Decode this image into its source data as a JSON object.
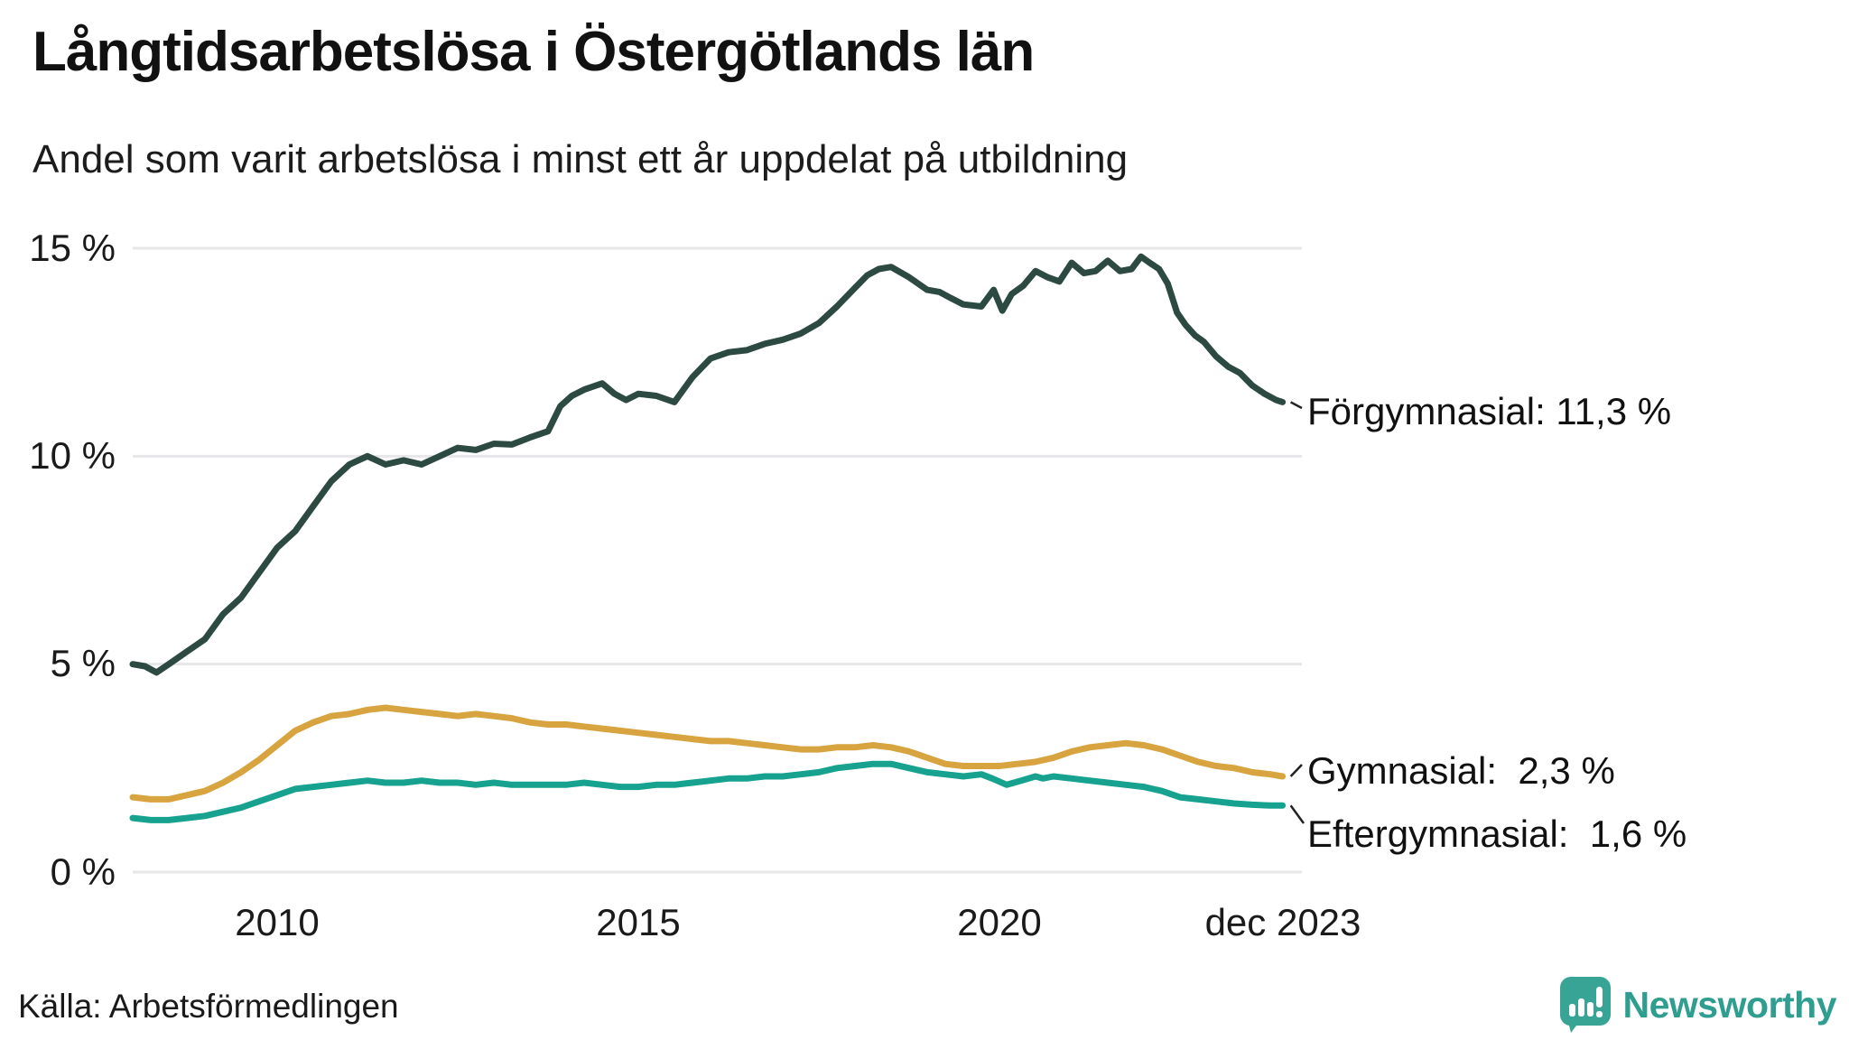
{
  "header": {
    "title": "Långtidsarbetslösa i Östergötlands län",
    "subtitle": "Andel som varit arbetslösa i minst ett år uppdelat på utbildning"
  },
  "footer": {
    "source": "Källa: Arbetsförmedlingen",
    "brand": "Newsworthy"
  },
  "colors": {
    "grid": "#e7e7ea",
    "text": "#1a1a1a",
    "connector": "#222222",
    "brand_teal": "#2f9e90",
    "icon_teal": "#38a495"
  },
  "chart_data": {
    "type": "line",
    "title": "Långtidsarbetslösa i Östergötlands län",
    "subtitle": "Andel som varit arbetslösa i minst ett år uppdelat på utbildning",
    "unit": "%",
    "grid": "horizontal",
    "legend_position": "end-of-line labels, right",
    "x_axis": {
      "min": 2008.0,
      "max": 2023.92,
      "ticks": [
        {
          "year": 2010,
          "label": "2010"
        },
        {
          "year": 2015,
          "label": "2015"
        },
        {
          "year": 2020,
          "label": "2020"
        },
        {
          "year": 2023.92,
          "label": "dec 2023"
        }
      ]
    },
    "y_axis": {
      "min": 0,
      "max": 15,
      "ticks": [
        {
          "value": 15,
          "label": "15 %"
        },
        {
          "value": 10,
          "label": "10 %"
        },
        {
          "value": 5,
          "label": "5 %"
        },
        {
          "value": 0,
          "label": "0 %"
        }
      ]
    },
    "series": [
      {
        "id": "forgymnasial",
        "name": "Förgymnasial",
        "end_label": "Förgymnasial: 11,3 %",
        "final_value": "11,3 %",
        "color": "#2c4a42",
        "points": [
          [
            2008.0,
            5.0
          ],
          [
            2008.17,
            4.95
          ],
          [
            2008.33,
            4.8
          ],
          [
            2008.5,
            5.0
          ],
          [
            2008.75,
            5.3
          ],
          [
            2009.0,
            5.6
          ],
          [
            2009.25,
            6.2
          ],
          [
            2009.5,
            6.6
          ],
          [
            2009.75,
            7.2
          ],
          [
            2010.0,
            7.8
          ],
          [
            2010.25,
            8.2
          ],
          [
            2010.5,
            8.8
          ],
          [
            2010.75,
            9.4
          ],
          [
            2011.0,
            9.8
          ],
          [
            2011.25,
            10.0
          ],
          [
            2011.5,
            9.8
          ],
          [
            2011.75,
            9.9
          ],
          [
            2012.0,
            9.8
          ],
          [
            2012.25,
            10.0
          ],
          [
            2012.5,
            10.2
          ],
          [
            2012.75,
            10.15
          ],
          [
            2013.0,
            10.3
          ],
          [
            2013.25,
            10.28
          ],
          [
            2013.5,
            10.45
          ],
          [
            2013.75,
            10.6
          ],
          [
            2013.92,
            11.2
          ],
          [
            2014.08,
            11.45
          ],
          [
            2014.25,
            11.6
          ],
          [
            2014.5,
            11.75
          ],
          [
            2014.67,
            11.5
          ],
          [
            2014.83,
            11.35
          ],
          [
            2015.0,
            11.5
          ],
          [
            2015.25,
            11.45
          ],
          [
            2015.5,
            11.3
          ],
          [
            2015.75,
            11.9
          ],
          [
            2016.0,
            12.35
          ],
          [
            2016.25,
            12.5
          ],
          [
            2016.5,
            12.55
          ],
          [
            2016.75,
            12.7
          ],
          [
            2017.0,
            12.8
          ],
          [
            2017.25,
            12.95
          ],
          [
            2017.5,
            13.2
          ],
          [
            2017.75,
            13.6
          ],
          [
            2018.0,
            14.05
          ],
          [
            2018.17,
            14.35
          ],
          [
            2018.33,
            14.5
          ],
          [
            2018.5,
            14.55
          ],
          [
            2018.75,
            14.3
          ],
          [
            2019.0,
            14.0
          ],
          [
            2019.17,
            13.95
          ],
          [
            2019.33,
            13.8
          ],
          [
            2019.5,
            13.65
          ],
          [
            2019.75,
            13.6
          ],
          [
            2019.92,
            14.0
          ],
          [
            2020.04,
            13.5
          ],
          [
            2020.17,
            13.9
          ],
          [
            2020.33,
            14.1
          ],
          [
            2020.5,
            14.45
          ],
          [
            2020.67,
            14.3
          ],
          [
            2020.83,
            14.2
          ],
          [
            2021.0,
            14.65
          ],
          [
            2021.17,
            14.4
          ],
          [
            2021.33,
            14.45
          ],
          [
            2021.5,
            14.7
          ],
          [
            2021.67,
            14.45
          ],
          [
            2021.83,
            14.5
          ],
          [
            2021.96,
            14.8
          ],
          [
            2022.08,
            14.65
          ],
          [
            2022.21,
            14.5
          ],
          [
            2022.33,
            14.15
          ],
          [
            2022.46,
            13.45
          ],
          [
            2022.58,
            13.15
          ],
          [
            2022.71,
            12.9
          ],
          [
            2022.83,
            12.75
          ],
          [
            2023.0,
            12.4
          ],
          [
            2023.17,
            12.15
          ],
          [
            2023.33,
            12.0
          ],
          [
            2023.5,
            11.7
          ],
          [
            2023.67,
            11.5
          ],
          [
            2023.83,
            11.35
          ],
          [
            2023.92,
            11.3
          ]
        ]
      },
      {
        "id": "gymnasial",
        "name": "Gymnasial",
        "end_label": "Gymnasial:  2,3 %",
        "final_value": "2,3 %",
        "color": "#d8a440",
        "points": [
          [
            2008.0,
            1.8
          ],
          [
            2008.25,
            1.75
          ],
          [
            2008.5,
            1.75
          ],
          [
            2008.75,
            1.85
          ],
          [
            2009.0,
            1.95
          ],
          [
            2009.25,
            2.15
          ],
          [
            2009.5,
            2.4
          ],
          [
            2009.75,
            2.7
          ],
          [
            2010.0,
            3.05
          ],
          [
            2010.25,
            3.4
          ],
          [
            2010.5,
            3.6
          ],
          [
            2010.75,
            3.75
          ],
          [
            2011.0,
            3.8
          ],
          [
            2011.25,
            3.9
          ],
          [
            2011.5,
            3.95
          ],
          [
            2011.75,
            3.9
          ],
          [
            2012.0,
            3.85
          ],
          [
            2012.25,
            3.8
          ],
          [
            2012.5,
            3.75
          ],
          [
            2012.75,
            3.8
          ],
          [
            2013.0,
            3.75
          ],
          [
            2013.25,
            3.7
          ],
          [
            2013.5,
            3.6
          ],
          [
            2013.75,
            3.55
          ],
          [
            2014.0,
            3.55
          ],
          [
            2014.25,
            3.5
          ],
          [
            2014.5,
            3.45
          ],
          [
            2014.75,
            3.4
          ],
          [
            2015.0,
            3.35
          ],
          [
            2015.25,
            3.3
          ],
          [
            2015.5,
            3.25
          ],
          [
            2015.75,
            3.2
          ],
          [
            2016.0,
            3.15
          ],
          [
            2016.25,
            3.15
          ],
          [
            2016.5,
            3.1
          ],
          [
            2016.75,
            3.05
          ],
          [
            2017.0,
            3.0
          ],
          [
            2017.25,
            2.95
          ],
          [
            2017.5,
            2.95
          ],
          [
            2017.75,
            3.0
          ],
          [
            2018.0,
            3.0
          ],
          [
            2018.25,
            3.05
          ],
          [
            2018.5,
            3.0
          ],
          [
            2018.75,
            2.9
          ],
          [
            2019.0,
            2.75
          ],
          [
            2019.25,
            2.6
          ],
          [
            2019.5,
            2.55
          ],
          [
            2019.75,
            2.55
          ],
          [
            2020.0,
            2.55
          ],
          [
            2020.25,
            2.6
          ],
          [
            2020.5,
            2.65
          ],
          [
            2020.75,
            2.75
          ],
          [
            2021.0,
            2.9
          ],
          [
            2021.25,
            3.0
          ],
          [
            2021.5,
            3.05
          ],
          [
            2021.75,
            3.1
          ],
          [
            2022.0,
            3.05
          ],
          [
            2022.25,
            2.95
          ],
          [
            2022.5,
            2.8
          ],
          [
            2022.75,
            2.65
          ],
          [
            2023.0,
            2.55
          ],
          [
            2023.25,
            2.5
          ],
          [
            2023.5,
            2.4
          ],
          [
            2023.75,
            2.35
          ],
          [
            2023.92,
            2.3
          ]
        ]
      },
      {
        "id": "eftergymnasial",
        "name": "Eftergymnasial",
        "end_label": "Eftergymnasial:  1,6 %",
        "final_value": "1,6 %",
        "color": "#16a28f",
        "points": [
          [
            2008.0,
            1.3
          ],
          [
            2008.25,
            1.25
          ],
          [
            2008.5,
            1.25
          ],
          [
            2008.75,
            1.3
          ],
          [
            2009.0,
            1.35
          ],
          [
            2009.25,
            1.45
          ],
          [
            2009.5,
            1.55
          ],
          [
            2009.75,
            1.7
          ],
          [
            2010.0,
            1.85
          ],
          [
            2010.25,
            2.0
          ],
          [
            2010.5,
            2.05
          ],
          [
            2010.75,
            2.1
          ],
          [
            2011.0,
            2.15
          ],
          [
            2011.25,
            2.2
          ],
          [
            2011.5,
            2.15
          ],
          [
            2011.75,
            2.15
          ],
          [
            2012.0,
            2.2
          ],
          [
            2012.25,
            2.15
          ],
          [
            2012.5,
            2.15
          ],
          [
            2012.75,
            2.1
          ],
          [
            2013.0,
            2.15
          ],
          [
            2013.25,
            2.1
          ],
          [
            2013.5,
            2.1
          ],
          [
            2013.75,
            2.1
          ],
          [
            2014.0,
            2.1
          ],
          [
            2014.25,
            2.15
          ],
          [
            2014.5,
            2.1
          ],
          [
            2014.75,
            2.05
          ],
          [
            2015.0,
            2.05
          ],
          [
            2015.25,
            2.1
          ],
          [
            2015.5,
            2.1
          ],
          [
            2015.75,
            2.15
          ],
          [
            2016.0,
            2.2
          ],
          [
            2016.25,
            2.25
          ],
          [
            2016.5,
            2.25
          ],
          [
            2016.75,
            2.3
          ],
          [
            2017.0,
            2.3
          ],
          [
            2017.25,
            2.35
          ],
          [
            2017.5,
            2.4
          ],
          [
            2017.75,
            2.5
          ],
          [
            2018.0,
            2.55
          ],
          [
            2018.25,
            2.6
          ],
          [
            2018.5,
            2.6
          ],
          [
            2018.75,
            2.5
          ],
          [
            2019.0,
            2.4
          ],
          [
            2019.25,
            2.35
          ],
          [
            2019.5,
            2.3
          ],
          [
            2019.75,
            2.35
          ],
          [
            2019.9,
            2.25
          ],
          [
            2020.1,
            2.1
          ],
          [
            2020.3,
            2.2
          ],
          [
            2020.5,
            2.3
          ],
          [
            2020.6,
            2.25
          ],
          [
            2020.75,
            2.3
          ],
          [
            2021.0,
            2.25
          ],
          [
            2021.25,
            2.2
          ],
          [
            2021.5,
            2.15
          ],
          [
            2021.75,
            2.1
          ],
          [
            2022.0,
            2.05
          ],
          [
            2022.25,
            1.95
          ],
          [
            2022.5,
            1.8
          ],
          [
            2022.75,
            1.75
          ],
          [
            2023.0,
            1.7
          ],
          [
            2023.25,
            1.65
          ],
          [
            2023.5,
            1.62
          ],
          [
            2023.75,
            1.6
          ],
          [
            2023.92,
            1.6
          ]
        ]
      }
    ]
  }
}
